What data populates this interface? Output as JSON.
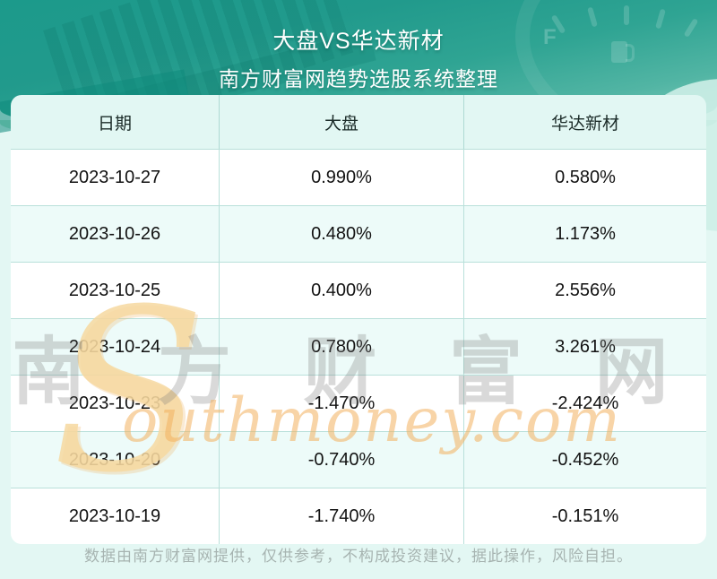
{
  "header": {
    "title": "大盘VS华达新材",
    "subtitle": "南方财富网趋势选股系统整理"
  },
  "table": {
    "columns": [
      "日期",
      "大盘",
      "华达新材"
    ],
    "rows": [
      {
        "date": "2023-10-27",
        "market": "0.990%",
        "stock": "0.580%"
      },
      {
        "date": "2023-10-26",
        "market": "0.480%",
        "stock": "1.173%"
      },
      {
        "date": "2023-10-25",
        "market": "0.400%",
        "stock": "2.556%"
      },
      {
        "date": "2023-10-24",
        "market": "0.780%",
        "stock": "3.261%"
      },
      {
        "date": "2023-10-23",
        "market": "-1.470%",
        "stock": "-2.424%"
      },
      {
        "date": "2023-10-20",
        "market": "-0.740%",
        "stock": "-0.452%"
      },
      {
        "date": "2023-10-19",
        "market": "-1.740%",
        "stock": "-0.151%"
      }
    ]
  },
  "watermark": {
    "swoosh_letter": "S",
    "brand_cn": "南 方 财 富 网",
    "brand_en": "outhmoney.com"
  },
  "footer": {
    "disclaimer": "数据由南方财富网提供，仅供参考，不构成投资建议，据此操作，风险自担。"
  },
  "colors": {
    "header_teal_dark": "#1c9a8b",
    "header_teal_light": "#8fd2c3",
    "page_mint": "#e3f7f3",
    "table_header_bg": "#e2f7f3",
    "row_alt_bg": "#edfbf9",
    "table_border": "#b9e0da",
    "watermark_gray": "#767676",
    "watermark_orange": "#f3b15f",
    "footer_text": "#a7b4b1",
    "title_text": "#ffffff"
  },
  "chart_data": {
    "type": "table",
    "title": "大盘VS华达新材",
    "subtitle": "南方财富网趋势选股系统整理",
    "columns": [
      "日期",
      "大盘",
      "华达新材"
    ],
    "categories": [
      "2023-10-27",
      "2023-10-26",
      "2023-10-25",
      "2023-10-24",
      "2023-10-23",
      "2023-10-20",
      "2023-10-19"
    ],
    "series": [
      {
        "name": "大盘",
        "unit": "%",
        "values": [
          0.99,
          0.48,
          0.4,
          0.78,
          -1.47,
          -0.74,
          -1.74
        ]
      },
      {
        "name": "华达新材",
        "unit": "%",
        "values": [
          0.58,
          1.173,
          2.556,
          3.261,
          -2.424,
          -0.452,
          -0.151
        ]
      }
    ]
  }
}
